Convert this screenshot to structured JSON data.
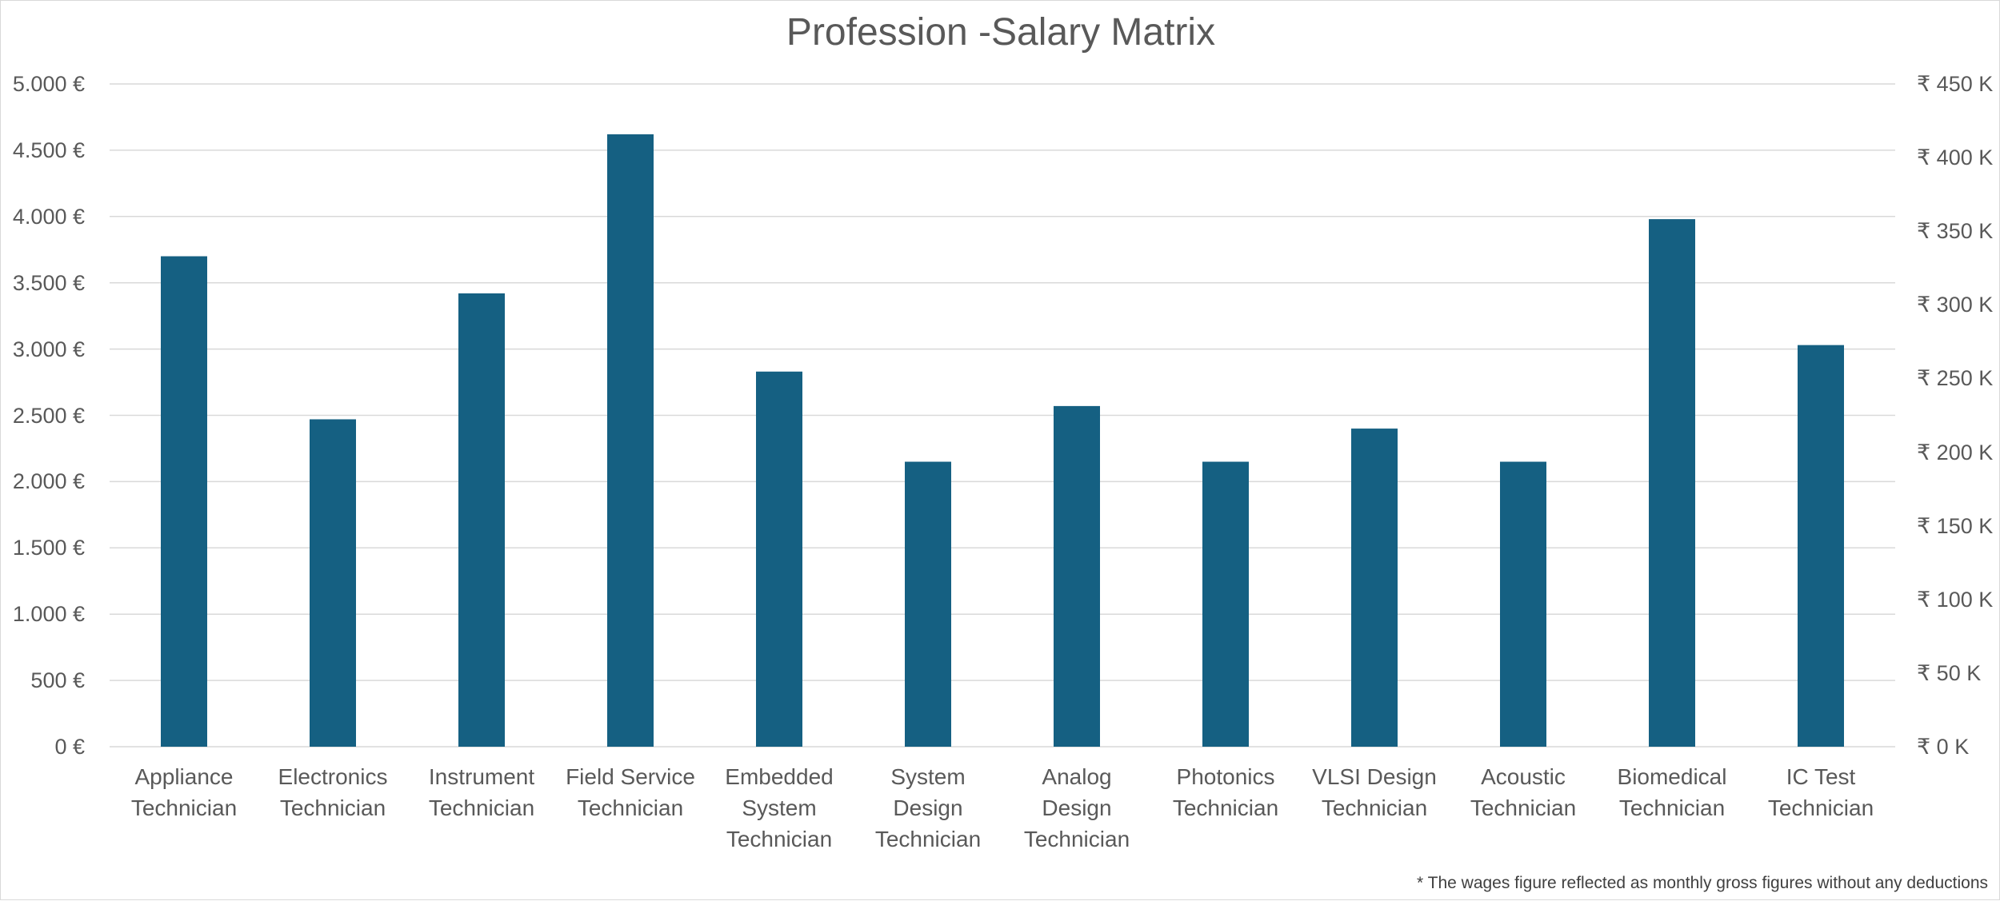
{
  "chart_data": {
    "type": "bar",
    "title": "Profession -Salary Matrix",
    "footnote": "* The wages figure reflected as monthly gross figures without any deductions",
    "categories": [
      "Appliance Technician",
      "Electronics Technician",
      "Instrument Technician",
      "Field Service Technician",
      "Embedded System Technician",
      "System Design Technician",
      "Analog Design Technician",
      "Photonics Technician",
      "VLSI Design Technician",
      "Acoustic Technician",
      "Biomedical Technician",
      "IC Test Technician"
    ],
    "values": [
      3700,
      2470,
      3420,
      4620,
      2830,
      2150,
      2570,
      2150,
      2400,
      2150,
      3980,
      3030
    ],
    "color": "#156082",
    "ylim": [
      0,
      5000
    ],
    "yticks": [
      {
        "value": 0,
        "label": "0 €"
      },
      {
        "value": 500,
        "label": "500 €"
      },
      {
        "value": 1000,
        "label": "1.000 €"
      },
      {
        "value": 1500,
        "label": "1.500 €"
      },
      {
        "value": 2000,
        "label": "2.000 €"
      },
      {
        "value": 2500,
        "label": "2.500 €"
      },
      {
        "value": 3000,
        "label": "3.000 €"
      },
      {
        "value": 3500,
        "label": "3.500 €"
      },
      {
        "value": 4000,
        "label": "4.000 €"
      },
      {
        "value": 4500,
        "label": "4.500 €"
      },
      {
        "value": 5000,
        "label": "5.000 €"
      }
    ],
    "y2lim": [
      0,
      450000
    ],
    "y2ticks": [
      {
        "value": 0,
        "label": "₹ 0 K"
      },
      {
        "value": 50000,
        "label": "₹ 50 K"
      },
      {
        "value": 100000,
        "label": "₹ 100 K"
      },
      {
        "value": 150000,
        "label": "₹ 150 K"
      },
      {
        "value": 200000,
        "label": "₹ 200 K"
      },
      {
        "value": 250000,
        "label": "₹ 250 K"
      },
      {
        "value": 300000,
        "label": "₹ 300 K"
      },
      {
        "value": 350000,
        "label": "₹ 350 K"
      },
      {
        "value": 400000,
        "label": "₹ 400 K"
      },
      {
        "value": 450000,
        "label": "₹ 450 K"
      }
    ],
    "grid": true
  }
}
